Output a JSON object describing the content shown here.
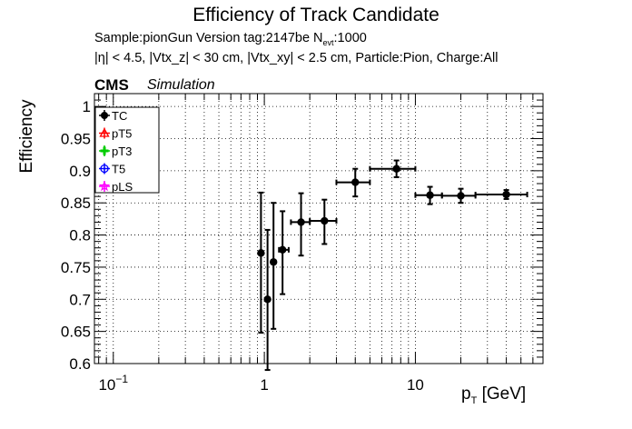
{
  "title": "Efficiency of Track Candidate",
  "info": {
    "line1_prefix": "Sample:pionGun   Version tag:2147be  N",
    "line1_sub": "evt",
    "line1_suffix": ":1000",
    "line2": "|η| < 4.5, |Vtx_z| < 30 cm, |Vtx_xy| < 2.5 cm, Particle:Pion, Charge:All"
  },
  "cms_label": "CMS",
  "simulation_label": "Simulation",
  "colors": {
    "TC": "#000000",
    "pT5": "#ff0000",
    "pT3": "#00cc00",
    "T5": "#0000ff",
    "pLS": "#ff00ff"
  },
  "chart_data": {
    "type": "scatter",
    "title": "Efficiency of Track Candidate",
    "xlabel_main": "p",
    "xlabel_sub": "T",
    "xlabel_unit": " [GeV]",
    "ylabel": "Efficiency",
    "xscale": "log",
    "xlim": [
      0.075,
      70
    ],
    "ylim": [
      0.6,
      1.02
    ],
    "grid": true,
    "legend_position": "top-left",
    "x_ticks": [
      {
        "value": 0.1,
        "base": "10",
        "exp": "−1"
      },
      {
        "value": 1,
        "base": "1",
        "exp": ""
      },
      {
        "value": 10,
        "base": "10",
        "exp": ""
      }
    ],
    "y_ticks": [
      {
        "value": 0.6,
        "label": "0.6"
      },
      {
        "value": 0.65,
        "label": "0.65"
      },
      {
        "value": 0.7,
        "label": "0.7"
      },
      {
        "value": 0.75,
        "label": "0.75"
      },
      {
        "value": 0.8,
        "label": "0.8"
      },
      {
        "value": 0.85,
        "label": "0.85"
      },
      {
        "value": 0.9,
        "label": "0.9"
      },
      {
        "value": 0.95,
        "label": "0.95"
      },
      {
        "value": 1.0,
        "label": "1"
      }
    ],
    "legend": [
      "TC",
      "pT5",
      "pT3",
      "T5",
      "pLS"
    ],
    "series": [
      {
        "name": "TC",
        "points": [
          {
            "x": 0.95,
            "xlo": 0.95,
            "xhi": 0.95,
            "y": 0.772,
            "ylo": 0.648,
            "yhi": 0.866
          },
          {
            "x": 1.05,
            "xlo": 1.05,
            "xhi": 1.05,
            "y": 0.7,
            "ylo": 0.59,
            "yhi": 0.808
          },
          {
            "x": 1.15,
            "xlo": 1.15,
            "xhi": 1.15,
            "y": 0.758,
            "ylo": 0.654,
            "yhi": 0.85
          },
          {
            "x": 1.32,
            "xlo": 1.25,
            "xhi": 1.45,
            "y": 0.777,
            "ylo": 0.708,
            "yhi": 0.837
          },
          {
            "x": 1.75,
            "xlo": 1.5,
            "xhi": 2.0,
            "y": 0.82,
            "ylo": 0.768,
            "yhi": 0.865
          },
          {
            "x": 2.5,
            "xlo": 2.0,
            "xhi": 3.0,
            "y": 0.822,
            "ylo": 0.786,
            "yhi": 0.855
          },
          {
            "x": 4.0,
            "xlo": 3.0,
            "xhi": 5.0,
            "y": 0.882,
            "ylo": 0.86,
            "yhi": 0.903
          },
          {
            "x": 7.5,
            "xlo": 5.0,
            "xhi": 10.0,
            "y": 0.903,
            "ylo": 0.89,
            "yhi": 0.916
          },
          {
            "x": 12.5,
            "xlo": 10.0,
            "xhi": 15.0,
            "y": 0.862,
            "ylo": 0.848,
            "yhi": 0.875
          },
          {
            "x": 20.0,
            "xlo": 15.0,
            "xhi": 25.0,
            "y": 0.861,
            "ylo": 0.85,
            "yhi": 0.872
          },
          {
            "x": 40.0,
            "xlo": 25.0,
            "xhi": 55.0,
            "y": 0.863,
            "ylo": 0.856,
            "yhi": 0.87
          }
        ]
      },
      {
        "name": "pT5",
        "points": []
      },
      {
        "name": "pT3",
        "points": []
      },
      {
        "name": "T5",
        "points": []
      },
      {
        "name": "pLS",
        "points": []
      }
    ]
  }
}
